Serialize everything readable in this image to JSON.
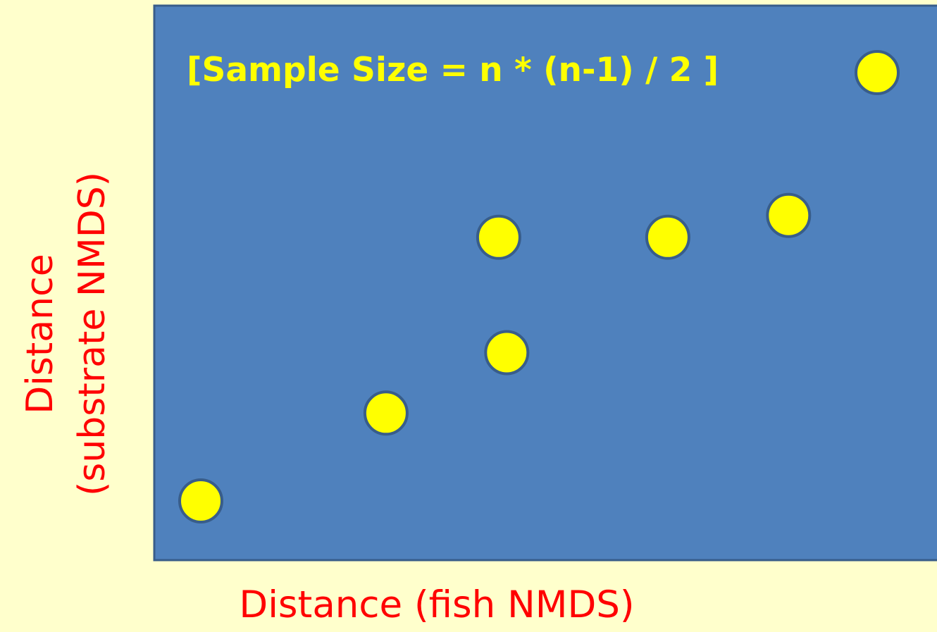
{
  "colors": {
    "background": "#ffffcc",
    "plot_area": "#4f81bd",
    "plot_border": "#385d8a",
    "point_fill": "#ffff00",
    "point_stroke": "#385d8a",
    "axis_label": "#ff0000",
    "title": "#ffff00"
  },
  "chart_data": {
    "type": "scatter",
    "title": "[Sample Size = n * (n-1) / 2 ]",
    "xlabel": "Distance (fish NMDS)",
    "ylabel_lines": [
      "Distance",
      "(substrate  NMDS)"
    ],
    "xlim": [
      0,
      100
    ],
    "ylim": [
      0,
      100
    ],
    "grid": false,
    "legend": "none",
    "marker": "circle",
    "points": [
      {
        "x": 6,
        "y": 11
      },
      {
        "x": 29,
        "y": 27
      },
      {
        "x": 44,
        "y": 38
      },
      {
        "x": 43,
        "y": 59
      },
      {
        "x": 64,
        "y": 59
      },
      {
        "x": 79,
        "y": 63
      },
      {
        "x": 90,
        "y": 89
      }
    ]
  }
}
